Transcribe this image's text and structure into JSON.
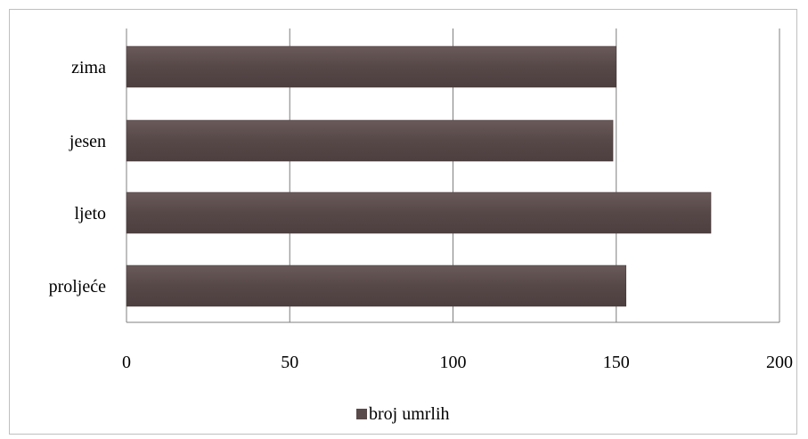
{
  "chart_data": {
    "type": "bar",
    "orientation": "horizontal",
    "categories": [
      "zima",
      "jesen",
      "ljeto",
      "proljeće"
    ],
    "series": [
      {
        "name": "broj umrlih",
        "values": [
          150,
          149,
          179,
          153
        ]
      }
    ],
    "xlim": [
      0,
      200
    ],
    "x_ticks": [
      "0",
      "50",
      "100",
      "150",
      "200"
    ],
    "grid": true,
    "legend_position": "bottom",
    "colors": {
      "bar": "#5a4a4a",
      "grid": "#7f7f7f",
      "frame": "#bfbfbf"
    }
  }
}
